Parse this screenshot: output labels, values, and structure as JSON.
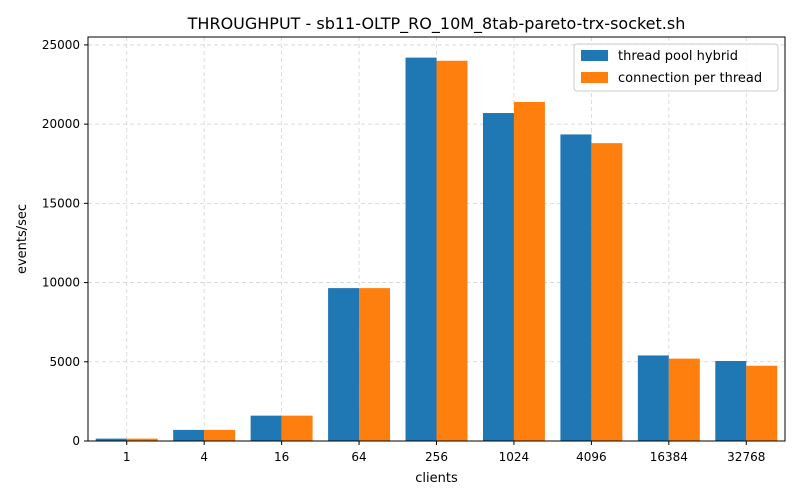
{
  "chart_data": {
    "type": "bar",
    "title": "THROUGHPUT - sb11-OLTP_RO_10M_8tab-pareto-trx-socket.sh",
    "xlabel": "clients",
    "ylabel": "events/sec",
    "categories": [
      "1",
      "4",
      "16",
      "64",
      "256",
      "1024",
      "4096",
      "16384",
      "32768"
    ],
    "ylim": [
      0,
      25500
    ],
    "yticks": [
      0,
      5000,
      10000,
      15000,
      20000,
      25000
    ],
    "grid": true,
    "legend_position": "top-right",
    "series": [
      {
        "name": "thread pool hybrid",
        "color": "#1f77b4",
        "values": [
          150,
          700,
          1600,
          9650,
          24200,
          20700,
          19350,
          5400,
          5050
        ]
      },
      {
        "name": "connection per thread",
        "color": "#ff7f0e",
        "values": [
          150,
          700,
          1600,
          9650,
          24000,
          21400,
          18800,
          5200,
          4750
        ]
      }
    ]
  }
}
